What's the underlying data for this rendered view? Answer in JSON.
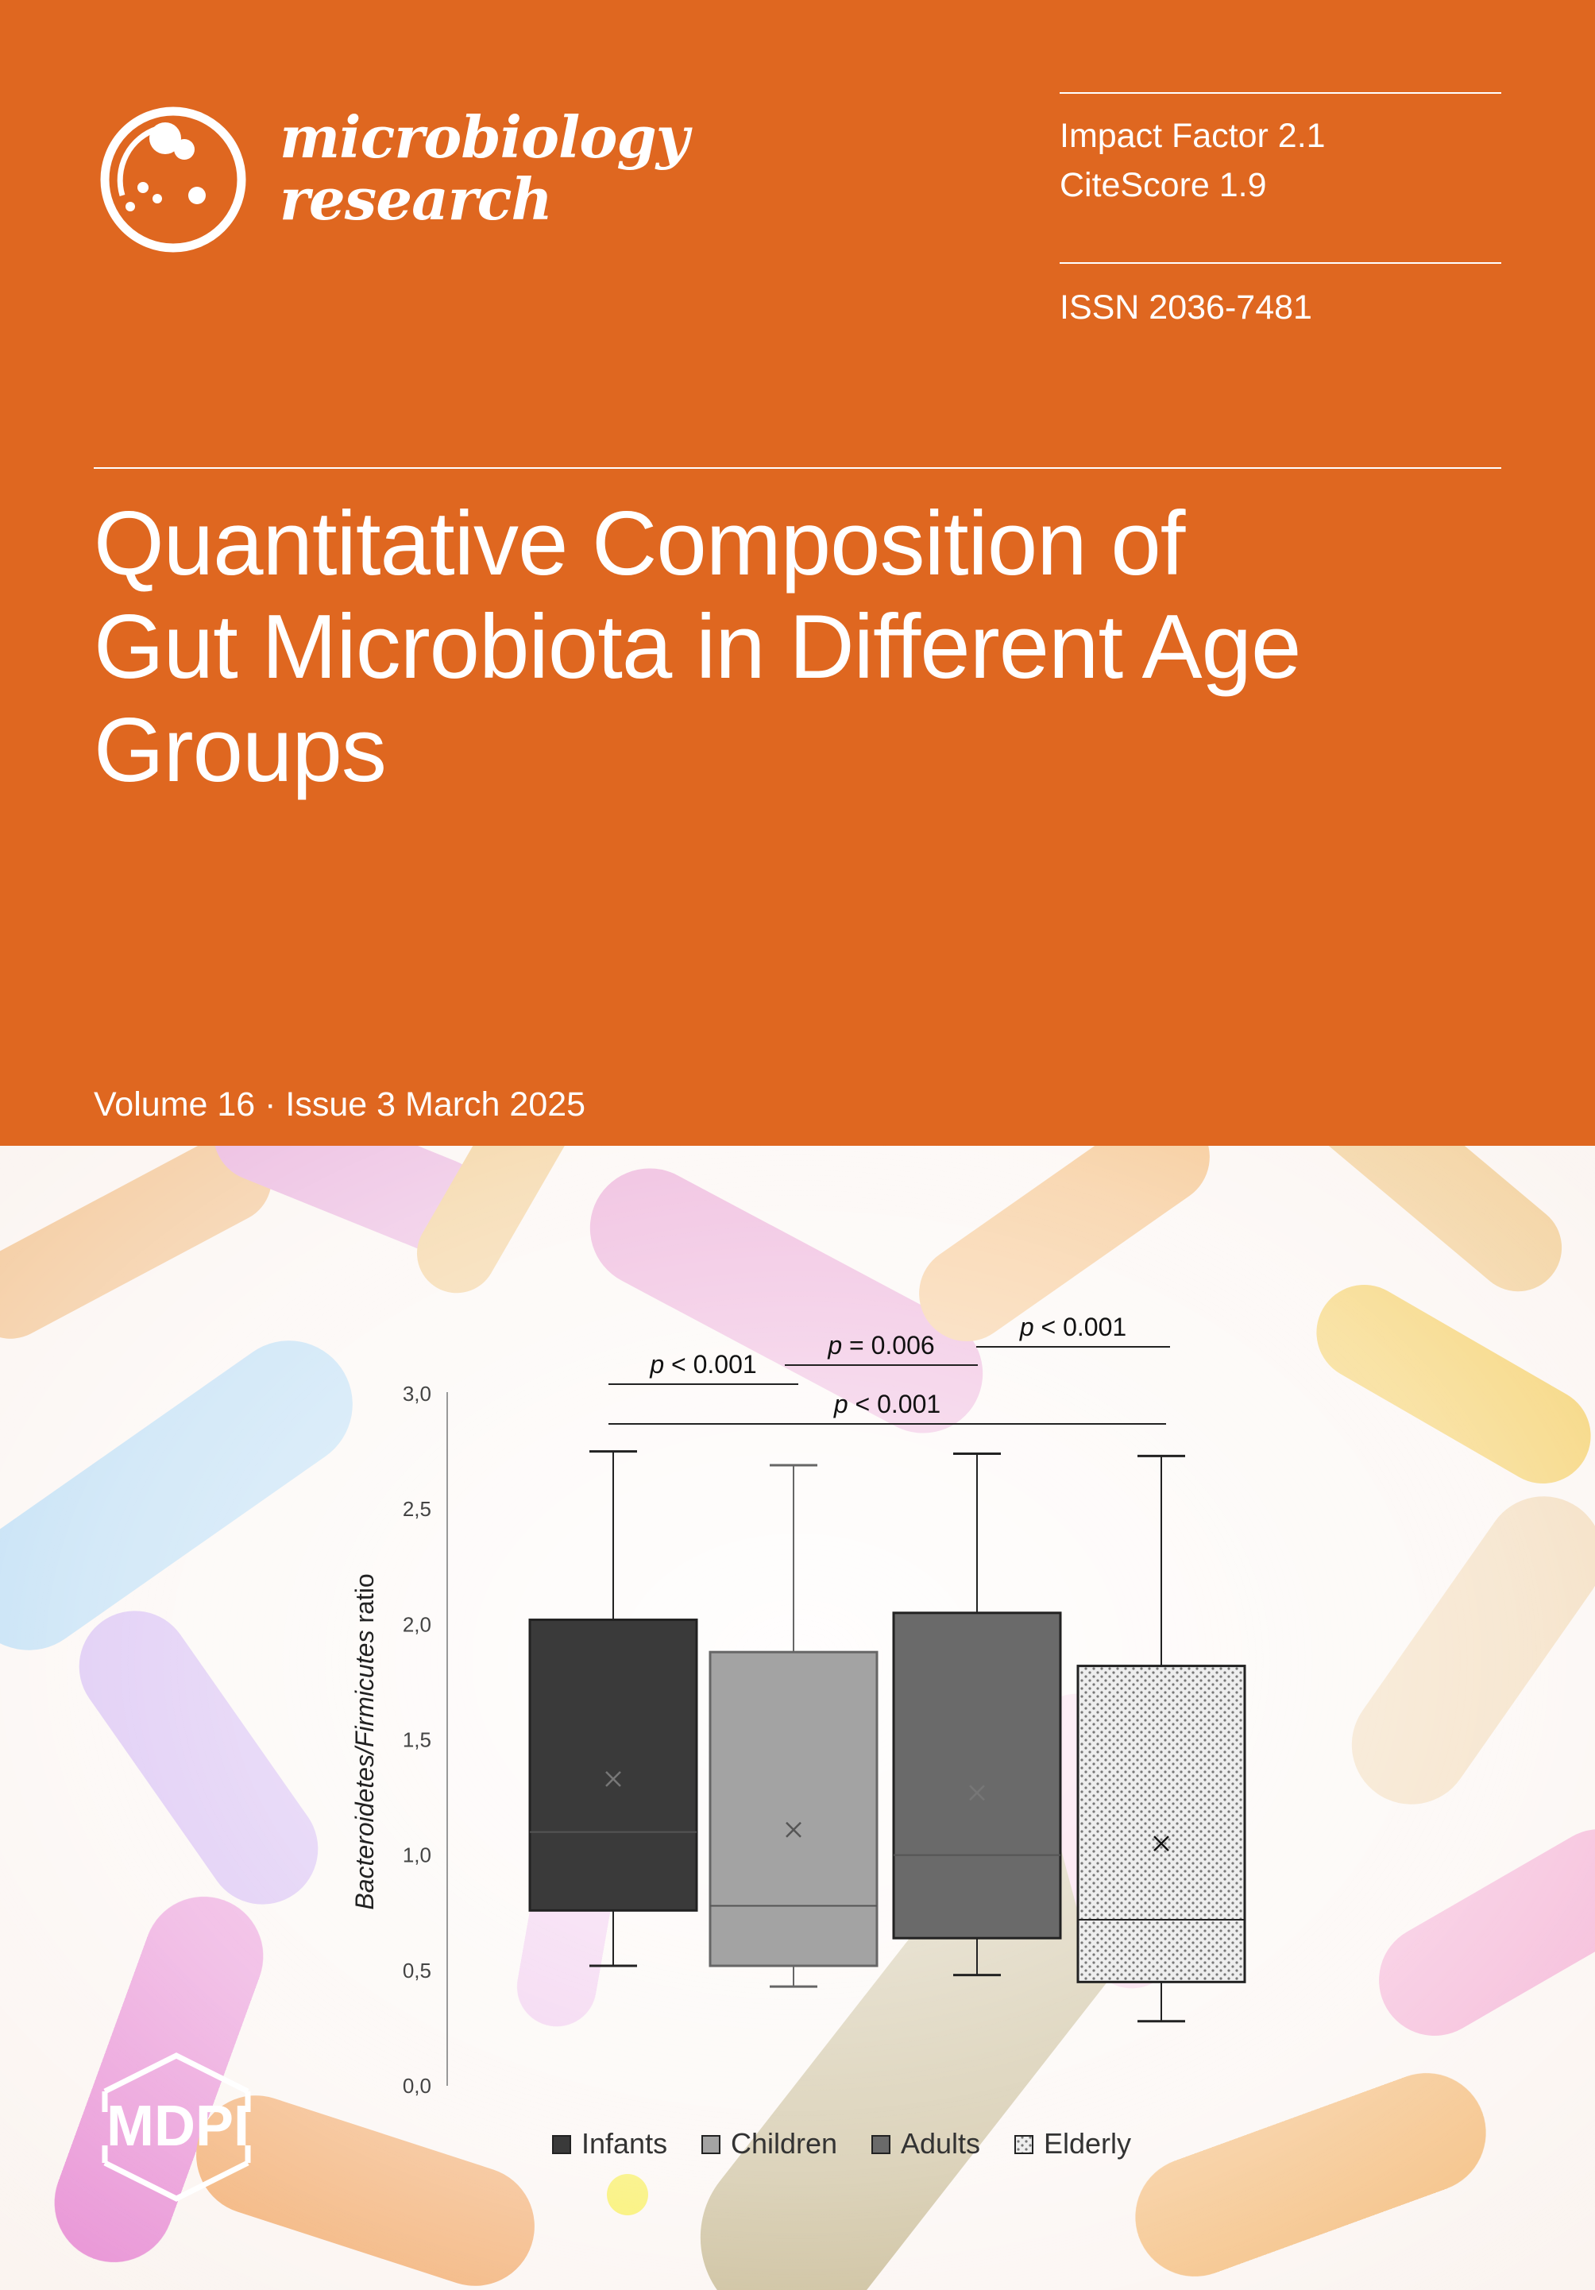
{
  "colors": {
    "cover_orange": "#DF6720",
    "text_white": "#FFFFFF"
  },
  "journal": {
    "name_line1": "microbiology",
    "name_line2": "research",
    "logo_icon": "petri-dish-icon"
  },
  "metrics": {
    "impact_factor": "Impact Factor 2.1",
    "citescore": "CiteScore 1.9",
    "issn": "ISSN 2036-7481"
  },
  "article": {
    "title_line1": "Quantitative Composition of",
    "title_line2": "Gut Microbiota in Different Age",
    "title_line3": "Groups"
  },
  "issue": {
    "volume_line": "Volume 16 · Issue 3 March 2025"
  },
  "publisher": {
    "logo_text": "MDPI"
  },
  "chart_data": {
    "type": "box",
    "ylabel_part1": "Bacteroidetes/Firmicutes",
    "ylabel_part2": " ratio",
    "ylim": [
      0,
      3
    ],
    "yticks": [
      "0,0",
      "0,5",
      "1,0",
      "1,5",
      "2,0",
      "2,5",
      "3,0"
    ],
    "grid": false,
    "legend_position": "bottom",
    "series": [
      {
        "name": "Infants",
        "color": "#3A3A3A",
        "pattern": "solid",
        "min": 0.52,
        "q1": 0.76,
        "median": 1.1,
        "q3": 2.02,
        "max": 2.75,
        "mean": 1.33
      },
      {
        "name": "Children",
        "color": "#A3A3A3",
        "pattern": "solid",
        "min": 0.43,
        "q1": 0.52,
        "median": 0.78,
        "q3": 1.88,
        "max": 2.69,
        "mean": 1.11
      },
      {
        "name": "Adults",
        "color": "#6A6A6A",
        "pattern": "solid",
        "min": 0.48,
        "q1": 0.64,
        "median": 1.0,
        "q3": 2.05,
        "max": 2.74,
        "mean": 1.27
      },
      {
        "name": "Elderly",
        "color": "#E6E6E6",
        "pattern": "dotted",
        "min": 0.28,
        "q1": 0.45,
        "median": 0.72,
        "q3": 1.82,
        "max": 2.73,
        "mean": 1.05
      }
    ],
    "annotations": [
      {
        "text_p": "p",
        "text_rest": " < 0.001",
        "from": 0,
        "to": 1
      },
      {
        "text_p": "p",
        "text_rest": " = 0.006",
        "from": 1,
        "to": 2
      },
      {
        "text_p": "p",
        "text_rest": " < 0.001",
        "from": 2,
        "to": 3
      },
      {
        "text_p": "p",
        "text_rest": " < 0.001",
        "from": 0,
        "to": 3
      }
    ]
  }
}
